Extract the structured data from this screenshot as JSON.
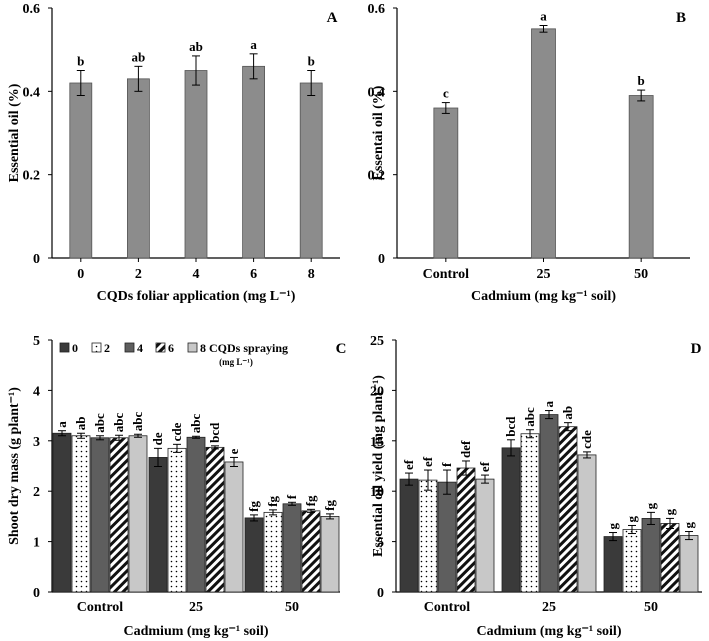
{
  "colors": {
    "gray_bar": "#8c8c8c",
    "dark": "#3a3a3a",
    "light": "#c8c8c8",
    "white": "#ffffff",
    "axis": "#000000"
  },
  "chart_data": [
    {
      "panel": "A",
      "type": "bar",
      "ylabel": "Essential oil (%)",
      "xlabel": "CQDs foliar application (mg L⁻¹)",
      "categories": [
        "0",
        "2",
        "4",
        "6",
        "8"
      ],
      "values": [
        0.42,
        0.43,
        0.45,
        0.46,
        0.42
      ],
      "errors": [
        0.03,
        0.03,
        0.035,
        0.03,
        0.03
      ],
      "letters": [
        "b",
        "ab",
        "ab",
        "a",
        "b"
      ],
      "ylim": [
        0,
        0.6
      ],
      "yticks": [
        "0",
        "0.2",
        "0.4",
        "0.6"
      ]
    },
    {
      "panel": "B",
      "type": "bar",
      "ylabel": "Essentai oil (%)",
      "xlabel": "Cadmium (mg kg⁻¹ soil)",
      "categories": [
        "Control",
        "25",
        "50"
      ],
      "values": [
        0.36,
        0.55,
        0.39
      ],
      "errors": [
        0.013,
        0.008,
        0.013
      ],
      "letters": [
        "c",
        "a",
        "b"
      ],
      "ylim": [
        0,
        0.6
      ],
      "yticks": [
        "0",
        "0.2",
        "0.4",
        "0.6"
      ]
    },
    {
      "panel": "C",
      "type": "bar",
      "ylabel": "Shoot dry mass (g plant⁻¹)",
      "xlabel": "Cadmium (mg kg⁻¹ soil)",
      "categories": [
        "Control",
        "25",
        "50"
      ],
      "legend": {
        "title_line1": "8 CQDs spraying",
        "title_line2": "(mg L⁻¹)",
        "labels": [
          "0",
          "2",
          "4",
          "6"
        ]
      },
      "series": [
        {
          "name": "0",
          "values": [
            3.15,
            2.67,
            1.47
          ],
          "errors": [
            0.05,
            0.18,
            0.06
          ],
          "letters": [
            "a",
            "de",
            "fg"
          ]
        },
        {
          "name": "2",
          "values": [
            3.1,
            2.85,
            1.58
          ],
          "errors": [
            0.05,
            0.08,
            0.05
          ],
          "letters": [
            "ab",
            "cde",
            "fg"
          ]
        },
        {
          "name": "4",
          "values": [
            3.06,
            3.07,
            1.75
          ],
          "errors": [
            0.04,
            0.02,
            0.03
          ],
          "letters": [
            "abc",
            "abc",
            "f"
          ]
        },
        {
          "name": "6",
          "values": [
            3.06,
            2.87,
            1.61
          ],
          "errors": [
            0.05,
            0.03,
            0.03
          ],
          "letters": [
            "abc",
            "bcd",
            "fg"
          ]
        },
        {
          "name": "8",
          "values": [
            3.1,
            2.58,
            1.5
          ],
          "errors": [
            0.03,
            0.09,
            0.05
          ],
          "letters": [
            "abc",
            "e",
            "fg"
          ]
        }
      ],
      "ylim": [
        0,
        5
      ],
      "yticks": [
        "0",
        "1",
        "2",
        "3",
        "4",
        "5"
      ]
    },
    {
      "panel": "D",
      "type": "bar",
      "ylabel": "Essential oil yield (mg plant⁻¹)",
      "xlabel": "Cadmium (mg kg⁻¹ soil)",
      "categories": [
        "Control",
        "25",
        "50"
      ],
      "series": [
        {
          "name": "0",
          "values": [
            11.2,
            14.3,
            5.5
          ],
          "errors": [
            0.6,
            0.8,
            0.4
          ],
          "letters": [
            "ef",
            "bcd",
            "g"
          ]
        },
        {
          "name": "2",
          "values": [
            11.1,
            15.7,
            6.2
          ],
          "errors": [
            1.0,
            0.4,
            0.4
          ],
          "letters": [
            "ef",
            "abc",
            "g"
          ]
        },
        {
          "name": "4",
          "values": [
            10.9,
            17.6,
            7.3
          ],
          "errors": [
            1.2,
            0.4,
            0.6
          ],
          "letters": [
            "f",
            "a",
            "g"
          ]
        },
        {
          "name": "6",
          "values": [
            12.3,
            16.4,
            6.8
          ],
          "errors": [
            0.7,
            0.4,
            0.5
          ],
          "letters": [
            "def",
            "ab",
            "g"
          ]
        },
        {
          "name": "8",
          "values": [
            11.2,
            13.6,
            5.6
          ],
          "errors": [
            0.4,
            0.3,
            0.4
          ],
          "letters": [
            "ef",
            "cde",
            "g"
          ]
        }
      ],
      "ylim": [
        0,
        25
      ],
      "yticks": [
        "0",
        "5",
        "10",
        "15",
        "20",
        "25"
      ]
    }
  ]
}
